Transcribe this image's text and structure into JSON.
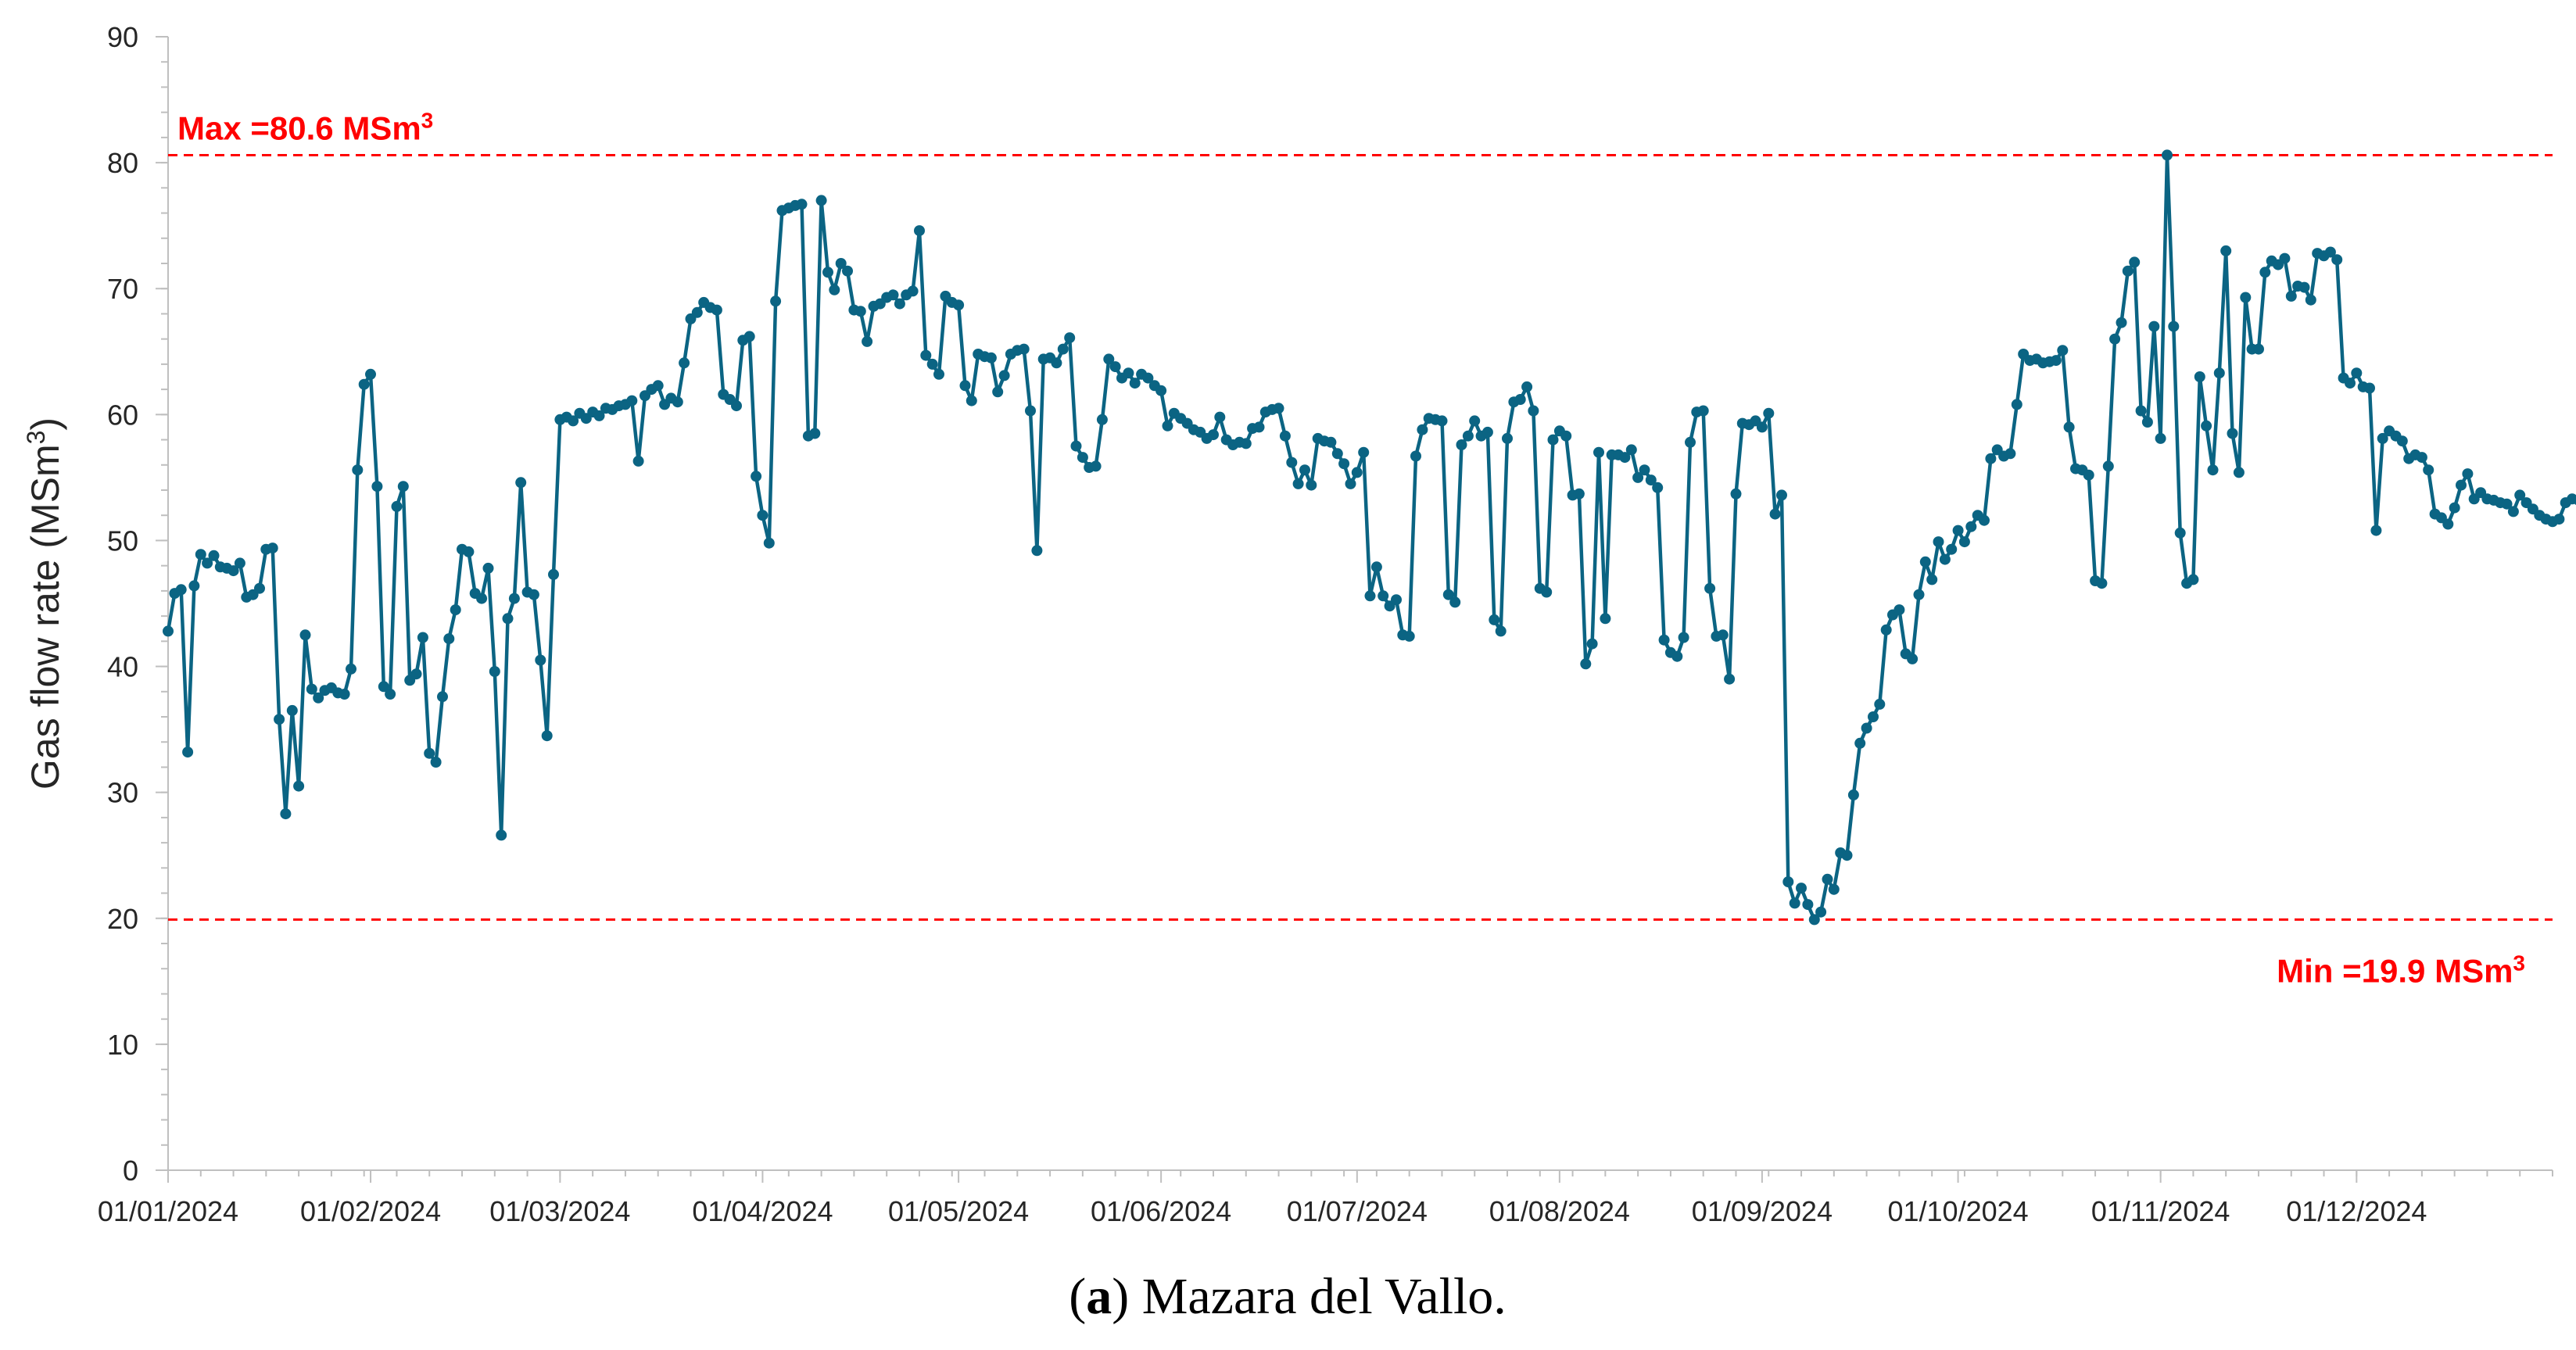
{
  "chart_data": {
    "type": "line",
    "xlabel": "",
    "ylabel": "Gas flow rate (MSm3)",
    "ylim": [
      0,
      90
    ],
    "yticks": [
      0,
      10,
      20,
      30,
      40,
      50,
      60,
      70,
      80,
      90
    ],
    "xlim": [
      "01/01/2024",
      "31/12/2024"
    ],
    "xtick_labels": [
      "01/01/2024",
      "01/02/2024",
      "01/03/2024",
      "01/04/2024",
      "01/05/2024",
      "01/06/2024",
      "01/07/2024",
      "01/08/2024",
      "01/09/2024",
      "01/10/2024",
      "01/11/2024",
      "01/12/2024"
    ],
    "grid": false,
    "legend": "none",
    "series_color": "#0b6483",
    "reference_color": "#ff0000",
    "max_line": {
      "value": 80.6,
      "label": "Max =80.6 MSm3",
      "placement": "top-left"
    },
    "min_line": {
      "value": 19.9,
      "label": "Min =19.9 MSm3",
      "placement": "bottom-right"
    },
    "series": [
      {
        "values": [
          42.8,
          45.8,
          46.1,
          33.2,
          46.4,
          48.9,
          48.2,
          48.8,
          47.9,
          47.8,
          47.6,
          48.2,
          45.5,
          45.7,
          46.2,
          49.3,
          49.4,
          35.8,
          28.3,
          36.5,
          30.5,
          42.5,
          38.2,
          37.5,
          38.1,
          38.3,
          37.9,
          37.8,
          39.8,
          55.6,
          62.4,
          63.2,
          54.3,
          38.4,
          37.8,
          52.7,
          54.3,
          38.9,
          39.4,
          42.3,
          33.1,
          32.4,
          37.6,
          42.2,
          44.5,
          49.3,
          49.1,
          45.8,
          45.4,
          47.8,
          39.6,
          26.6,
          43.8,
          45.4,
          54.6,
          45.9,
          45.7,
          40.5,
          34.5,
          47.3,
          59.6,
          59.8,
          59.5,
          60.1,
          59.7,
          60.2,
          59.9,
          60.5,
          60.4,
          60.7,
          60.8,
          61.1,
          56.3,
          61.5,
          62.0,
          62.3,
          60.8,
          61.3,
          61.0,
          64.1,
          67.6,
          68.1,
          68.9,
          68.5,
          68.3,
          61.6,
          61.2,
          60.7,
          65.9,
          66.2,
          55.1,
          52.0,
          49.8,
          69.0,
          76.2,
          76.4,
          76.6,
          76.7,
          58.3,
          58.5,
          77.0,
          71.3,
          69.9,
          72.0,
          71.4,
          68.3,
          68.2,
          65.8,
          68.6,
          68.8,
          69.3,
          69.5,
          68.8,
          69.5,
          69.8,
          74.6,
          64.7,
          64.0,
          63.2,
          69.4,
          68.9,
          68.7,
          62.3,
          61.1,
          64.8,
          64.6,
          64.5,
          61.8,
          63.1,
          64.8,
          65.1,
          65.2,
          60.3,
          49.2,
          64.4,
          64.5,
          64.1,
          65.2,
          66.1,
          57.5,
          56.6,
          55.8,
          55.9,
          59.6,
          64.4,
          63.8,
          62.9,
          63.3,
          62.5,
          63.2,
          62.9,
          62.3,
          61.9,
          59.1,
          60.1,
          59.7,
          59.3,
          58.8,
          58.6,
          58.1,
          58.4,
          59.8,
          58.0,
          57.6,
          57.8,
          57.7,
          58.9,
          59.0,
          60.2,
          60.4,
          60.5,
          58.3,
          56.2,
          54.5,
          55.6,
          54.4,
          58.1,
          57.9,
          57.8,
          56.9,
          56.1,
          54.5,
          55.4,
          57.0,
          45.6,
          47.9,
          45.6,
          44.8,
          45.3,
          42.5,
          42.4,
          56.7,
          58.8,
          59.7,
          59.6,
          59.5,
          45.7,
          45.1,
          57.6,
          58.3,
          59.5,
          58.3,
          58.6,
          43.7,
          42.8,
          58.1,
          61.0,
          61.2,
          62.2,
          60.3,
          46.2,
          45.9,
          58.0,
          58.7,
          58.3,
          53.6,
          53.7,
          40.2,
          41.8,
          57.0,
          43.8,
          56.8,
          56.8,
          56.6,
          57.2,
          55.0,
          55.6,
          54.8,
          54.2,
          42.1,
          41.1,
          40.8,
          42.3,
          57.8,
          60.2,
          60.3,
          46.2,
          42.4,
          42.5,
          39.0,
          53.7,
          59.3,
          59.2,
          59.5,
          59.0,
          60.1,
          52.1,
          53.6,
          22.9,
          21.2,
          22.4,
          21.1,
          19.9,
          20.5,
          23.1,
          22.3,
          25.2,
          25.0,
          29.8,
          33.9,
          35.1,
          36.0,
          37.0,
          42.9,
          44.1,
          44.5,
          41.0,
          40.6,
          45.7,
          48.3,
          46.9,
          49.9,
          48.5,
          49.3,
          50.8,
          49.9,
          51.1,
          52.0,
          51.6,
          56.5,
          57.2,
          56.7,
          56.9,
          60.8,
          64.8,
          64.3,
          64.4,
          64.1,
          64.2,
          64.3,
          65.1,
          59.0,
          55.7,
          55.6,
          55.2,
          46.8,
          46.6,
          55.9,
          66.0,
          67.3,
          71.4,
          72.1,
          60.3,
          59.4,
          67.0,
          58.1,
          80.6,
          67.0,
          50.6,
          46.6,
          46.9,
          63.0,
          59.1,
          55.6,
          63.3,
          73.0,
          58.5,
          55.4,
          69.3,
          65.2,
          65.2,
          71.3,
          72.2,
          71.9,
          72.4,
          69.4,
          70.2,
          70.1,
          69.1,
          72.8,
          72.6,
          72.9,
          72.3,
          62.9,
          62.5,
          63.3,
          62.2,
          62.1,
          50.8,
          58.1,
          58.7,
          58.3,
          57.9,
          56.5,
          56.8,
          56.6,
          55.6,
          52.1,
          51.8,
          51.3,
          52.6,
          54.4,
          55.3,
          53.3,
          53.8,
          53.3,
          53.2,
          53.0,
          52.9,
          52.3,
          53.6,
          53.0,
          52.5,
          52.0,
          51.7,
          51.5,
          51.7,
          53.0,
          53.3,
          53.2,
          52.7
        ]
      }
    ]
  },
  "caption": {
    "label": "a",
    "text": " Mazara del Vallo."
  }
}
